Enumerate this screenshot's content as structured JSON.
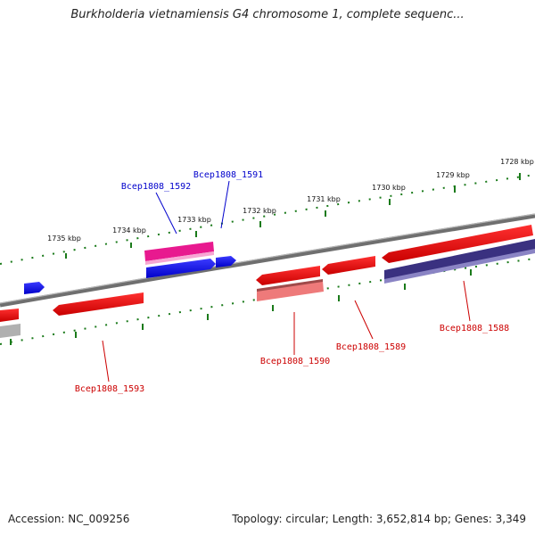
{
  "title": "Burkholderia vietnamiensis G4 chromosome 1, complete sequenc...",
  "footer": {
    "accession": "Accession: NC_009256",
    "topology": "Topology: circular; Length: 3,652,814 bp; Genes: 3,349"
  },
  "scale_labels": [
    "1735 kbp",
    "1734 kbp",
    "1733 kbp",
    "1732 kbp",
    "1731 kbp",
    "1730 kbp",
    "1729 kbp",
    "1728 kbp"
  ],
  "gene_labels": [
    {
      "id": "Bcep1808_1591",
      "color": "#0000cc"
    },
    {
      "id": "Bcep1808_1592",
      "color": "#0000cc"
    },
    {
      "id": "Bcep1808_1593",
      "color": "#cc0000"
    },
    {
      "id": "Bcep1808_1590",
      "color": "#cc0000"
    },
    {
      "id": "Bcep1808_1589",
      "color": "#cc0000"
    },
    {
      "id": "Bcep1808_1588",
      "color": "#cc0000"
    }
  ],
  "colors": {
    "forward_gene": "#0000ee",
    "reverse_gene": "#ee0000",
    "pink_gene": "#e8198f",
    "navy_gene": "#3a3180",
    "light_red_gene": "#ee7a7a",
    "backbone": "#777777",
    "ticks": "#1a7a1a"
  }
}
